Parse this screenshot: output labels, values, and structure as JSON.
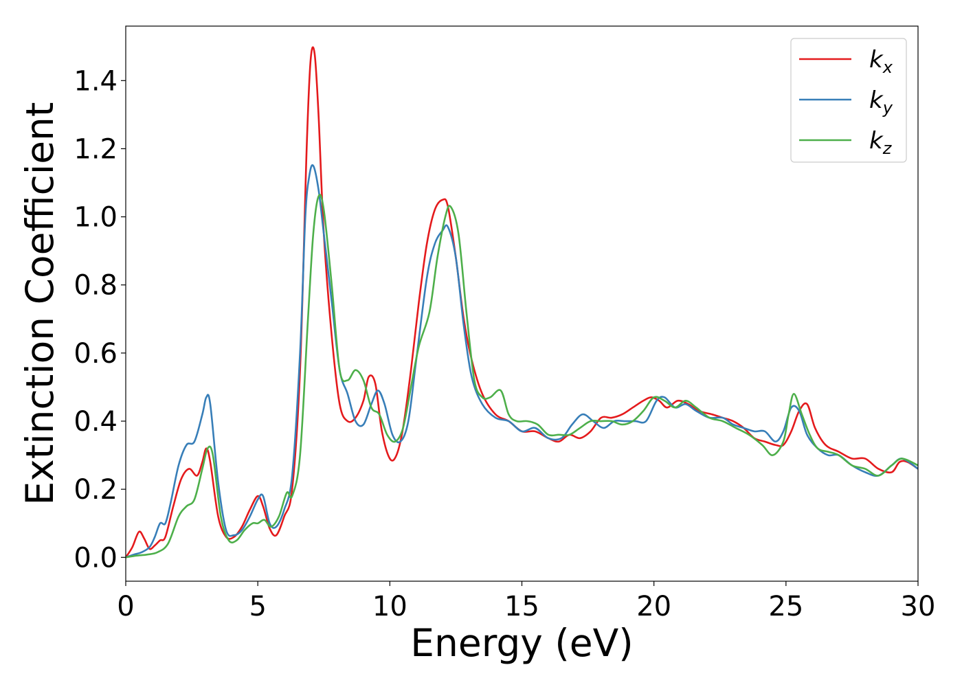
{
  "chart_data": {
    "type": "line",
    "title": "",
    "xlabel": "Energy (eV)",
    "ylabel": "Extinction Coefficient",
    "xlim": [
      0,
      30
    ],
    "ylim": [
      -0.07,
      1.56
    ],
    "xticks": [
      0,
      5,
      10,
      15,
      20,
      25,
      30
    ],
    "xtick_labels": [
      "0",
      "5",
      "10",
      "15",
      "20",
      "25",
      "30"
    ],
    "yticks": [
      0.0,
      0.2,
      0.4,
      0.6,
      0.8,
      1.0,
      1.2,
      1.4
    ],
    "ytick_labels": [
      "0.0",
      "0.2",
      "0.4",
      "0.6",
      "0.8",
      "1.0",
      "1.2",
      "1.4"
    ],
    "grid": false,
    "legend_position": "top-right",
    "series": [
      {
        "name": "k_x",
        "legend_base": "k",
        "legend_sub": "x",
        "color": "#e41a1c",
        "x": [
          0,
          0.25,
          0.5,
          0.7,
          0.9,
          1.1,
          1.3,
          1.5,
          1.8,
          2.1,
          2.4,
          2.7,
          2.9,
          3.05,
          3.2,
          3.5,
          3.8,
          4.1,
          4.4,
          4.7,
          5.0,
          5.2,
          5.45,
          5.7,
          6.0,
          6.3,
          6.6,
          6.85,
          7.0,
          7.15,
          7.3,
          7.5,
          7.8,
          8.1,
          8.4,
          8.7,
          9.0,
          9.2,
          9.45,
          9.7,
          10.0,
          10.25,
          10.5,
          10.8,
          11.1,
          11.4,
          11.7,
          12.0,
          12.2,
          12.5,
          12.8,
          13.1,
          13.5,
          14.0,
          14.5,
          15.0,
          15.5,
          16.0,
          16.4,
          16.8,
          17.2,
          17.6,
          18.0,
          18.4,
          18.8,
          19.2,
          19.6,
          19.9,
          20.2,
          20.5,
          20.9,
          21.3,
          21.7,
          22.2,
          22.6,
          23.0,
          23.4,
          23.8,
          24.2,
          24.6,
          24.9,
          25.2,
          25.5,
          25.8,
          26.1,
          26.5,
          27.0,
          27.5,
          28.0,
          28.5,
          29.0,
          29.3,
          29.6,
          30.0
        ],
        "values": [
          0.0,
          0.03,
          0.075,
          0.055,
          0.025,
          0.035,
          0.05,
          0.06,
          0.15,
          0.23,
          0.26,
          0.24,
          0.28,
          0.32,
          0.28,
          0.12,
          0.06,
          0.06,
          0.09,
          0.14,
          0.18,
          0.15,
          0.085,
          0.065,
          0.12,
          0.2,
          0.55,
          1.2,
          1.46,
          1.48,
          1.3,
          0.95,
          0.65,
          0.45,
          0.4,
          0.41,
          0.46,
          0.53,
          0.51,
          0.37,
          0.29,
          0.3,
          0.38,
          0.55,
          0.75,
          0.92,
          1.02,
          1.05,
          1.03,
          0.88,
          0.7,
          0.58,
          0.48,
          0.42,
          0.4,
          0.37,
          0.37,
          0.35,
          0.34,
          0.36,
          0.35,
          0.37,
          0.41,
          0.41,
          0.42,
          0.44,
          0.46,
          0.47,
          0.46,
          0.44,
          0.46,
          0.45,
          0.43,
          0.42,
          0.41,
          0.4,
          0.38,
          0.35,
          0.34,
          0.33,
          0.33,
          0.37,
          0.43,
          0.45,
          0.38,
          0.33,
          0.31,
          0.29,
          0.29,
          0.26,
          0.25,
          0.28,
          0.28,
          0.26
        ]
      },
      {
        "name": "k_y",
        "legend_base": "k",
        "legend_sub": "y",
        "color": "#377eb8",
        "x": [
          0,
          0.3,
          0.6,
          0.9,
          1.1,
          1.3,
          1.5,
          1.7,
          2.0,
          2.3,
          2.6,
          2.9,
          3.05,
          3.2,
          3.5,
          3.8,
          4.1,
          4.4,
          4.7,
          5.0,
          5.2,
          5.45,
          5.7,
          6.0,
          6.3,
          6.6,
          6.8,
          6.95,
          7.1,
          7.3,
          7.5,
          7.8,
          8.1,
          8.4,
          8.7,
          9.0,
          9.3,
          9.55,
          9.8,
          10.1,
          10.4,
          10.7,
          11.0,
          11.4,
          11.7,
          12.0,
          12.2,
          12.5,
          12.8,
          13.1,
          13.5,
          14.0,
          14.5,
          15.0,
          15.5,
          16.0,
          16.5,
          16.9,
          17.3,
          17.7,
          18.1,
          18.5,
          18.9,
          19.3,
          19.7,
          20.1,
          20.4,
          20.8,
          21.2,
          21.6,
          22.1,
          22.6,
          23.0,
          23.4,
          23.8,
          24.2,
          24.6,
          24.9,
          25.2,
          25.5,
          25.8,
          26.2,
          26.6,
          27.0,
          27.5,
          28.0,
          28.5,
          29.0,
          29.4,
          30.0
        ],
        "values": [
          0.0,
          0.008,
          0.015,
          0.03,
          0.06,
          0.1,
          0.1,
          0.16,
          0.27,
          0.33,
          0.34,
          0.42,
          0.47,
          0.45,
          0.22,
          0.08,
          0.065,
          0.08,
          0.12,
          0.17,
          0.18,
          0.1,
          0.09,
          0.14,
          0.24,
          0.6,
          1.0,
          1.12,
          1.15,
          1.08,
          0.95,
          0.75,
          0.55,
          0.48,
          0.4,
          0.39,
          0.45,
          0.49,
          0.45,
          0.36,
          0.34,
          0.4,
          0.58,
          0.82,
          0.92,
          0.96,
          0.97,
          0.88,
          0.68,
          0.53,
          0.45,
          0.41,
          0.4,
          0.37,
          0.38,
          0.35,
          0.35,
          0.39,
          0.42,
          0.4,
          0.38,
          0.4,
          0.4,
          0.4,
          0.4,
          0.46,
          0.47,
          0.44,
          0.45,
          0.43,
          0.41,
          0.41,
          0.39,
          0.38,
          0.37,
          0.37,
          0.34,
          0.37,
          0.44,
          0.43,
          0.36,
          0.32,
          0.3,
          0.3,
          0.27,
          0.25,
          0.24,
          0.27,
          0.29,
          0.26
        ]
      },
      {
        "name": "k_z",
        "legend_base": "k",
        "legend_sub": "z",
        "color": "#4daf4a",
        "x": [
          0,
          0.4,
          0.8,
          1.2,
          1.6,
          2.0,
          2.3,
          2.6,
          2.9,
          3.1,
          3.3,
          3.6,
          3.9,
          4.2,
          4.5,
          4.8,
          5.0,
          5.25,
          5.5,
          5.8,
          6.1,
          6.3,
          6.6,
          6.9,
          7.1,
          7.3,
          7.5,
          7.8,
          8.1,
          8.4,
          8.7,
          9.0,
          9.3,
          9.6,
          9.9,
          10.2,
          10.5,
          10.8,
          11.1,
          11.5,
          11.8,
          12.1,
          12.3,
          12.6,
          12.9,
          13.2,
          13.5,
          13.8,
          14.2,
          14.5,
          14.8,
          15.2,
          15.6,
          16.0,
          16.4,
          16.8,
          17.2,
          17.6,
          18.0,
          18.4,
          18.8,
          19.2,
          19.6,
          20.0,
          20.4,
          20.8,
          21.2,
          21.6,
          22.1,
          22.6,
          23.1,
          23.6,
          24.1,
          24.5,
          24.9,
          25.1,
          25.3,
          25.6,
          25.9,
          26.2,
          26.6,
          27.0,
          27.5,
          28.0,
          28.5,
          29.0,
          29.4,
          30.0
        ],
        "values": [
          0.0,
          0.005,
          0.008,
          0.015,
          0.04,
          0.12,
          0.15,
          0.17,
          0.26,
          0.32,
          0.3,
          0.12,
          0.05,
          0.05,
          0.08,
          0.1,
          0.1,
          0.11,
          0.09,
          0.12,
          0.19,
          0.18,
          0.3,
          0.7,
          0.95,
          1.06,
          1.02,
          0.8,
          0.55,
          0.52,
          0.55,
          0.52,
          0.44,
          0.42,
          0.36,
          0.34,
          0.38,
          0.5,
          0.62,
          0.72,
          0.88,
          1.0,
          1.03,
          0.95,
          0.72,
          0.52,
          0.47,
          0.47,
          0.49,
          0.42,
          0.4,
          0.4,
          0.39,
          0.36,
          0.36,
          0.36,
          0.38,
          0.4,
          0.4,
          0.4,
          0.39,
          0.4,
          0.43,
          0.47,
          0.46,
          0.44,
          0.46,
          0.44,
          0.41,
          0.4,
          0.38,
          0.36,
          0.33,
          0.3,
          0.34,
          0.42,
          0.48,
          0.42,
          0.36,
          0.32,
          0.31,
          0.3,
          0.27,
          0.26,
          0.24,
          0.27,
          0.29,
          0.27
        ]
      }
    ]
  }
}
